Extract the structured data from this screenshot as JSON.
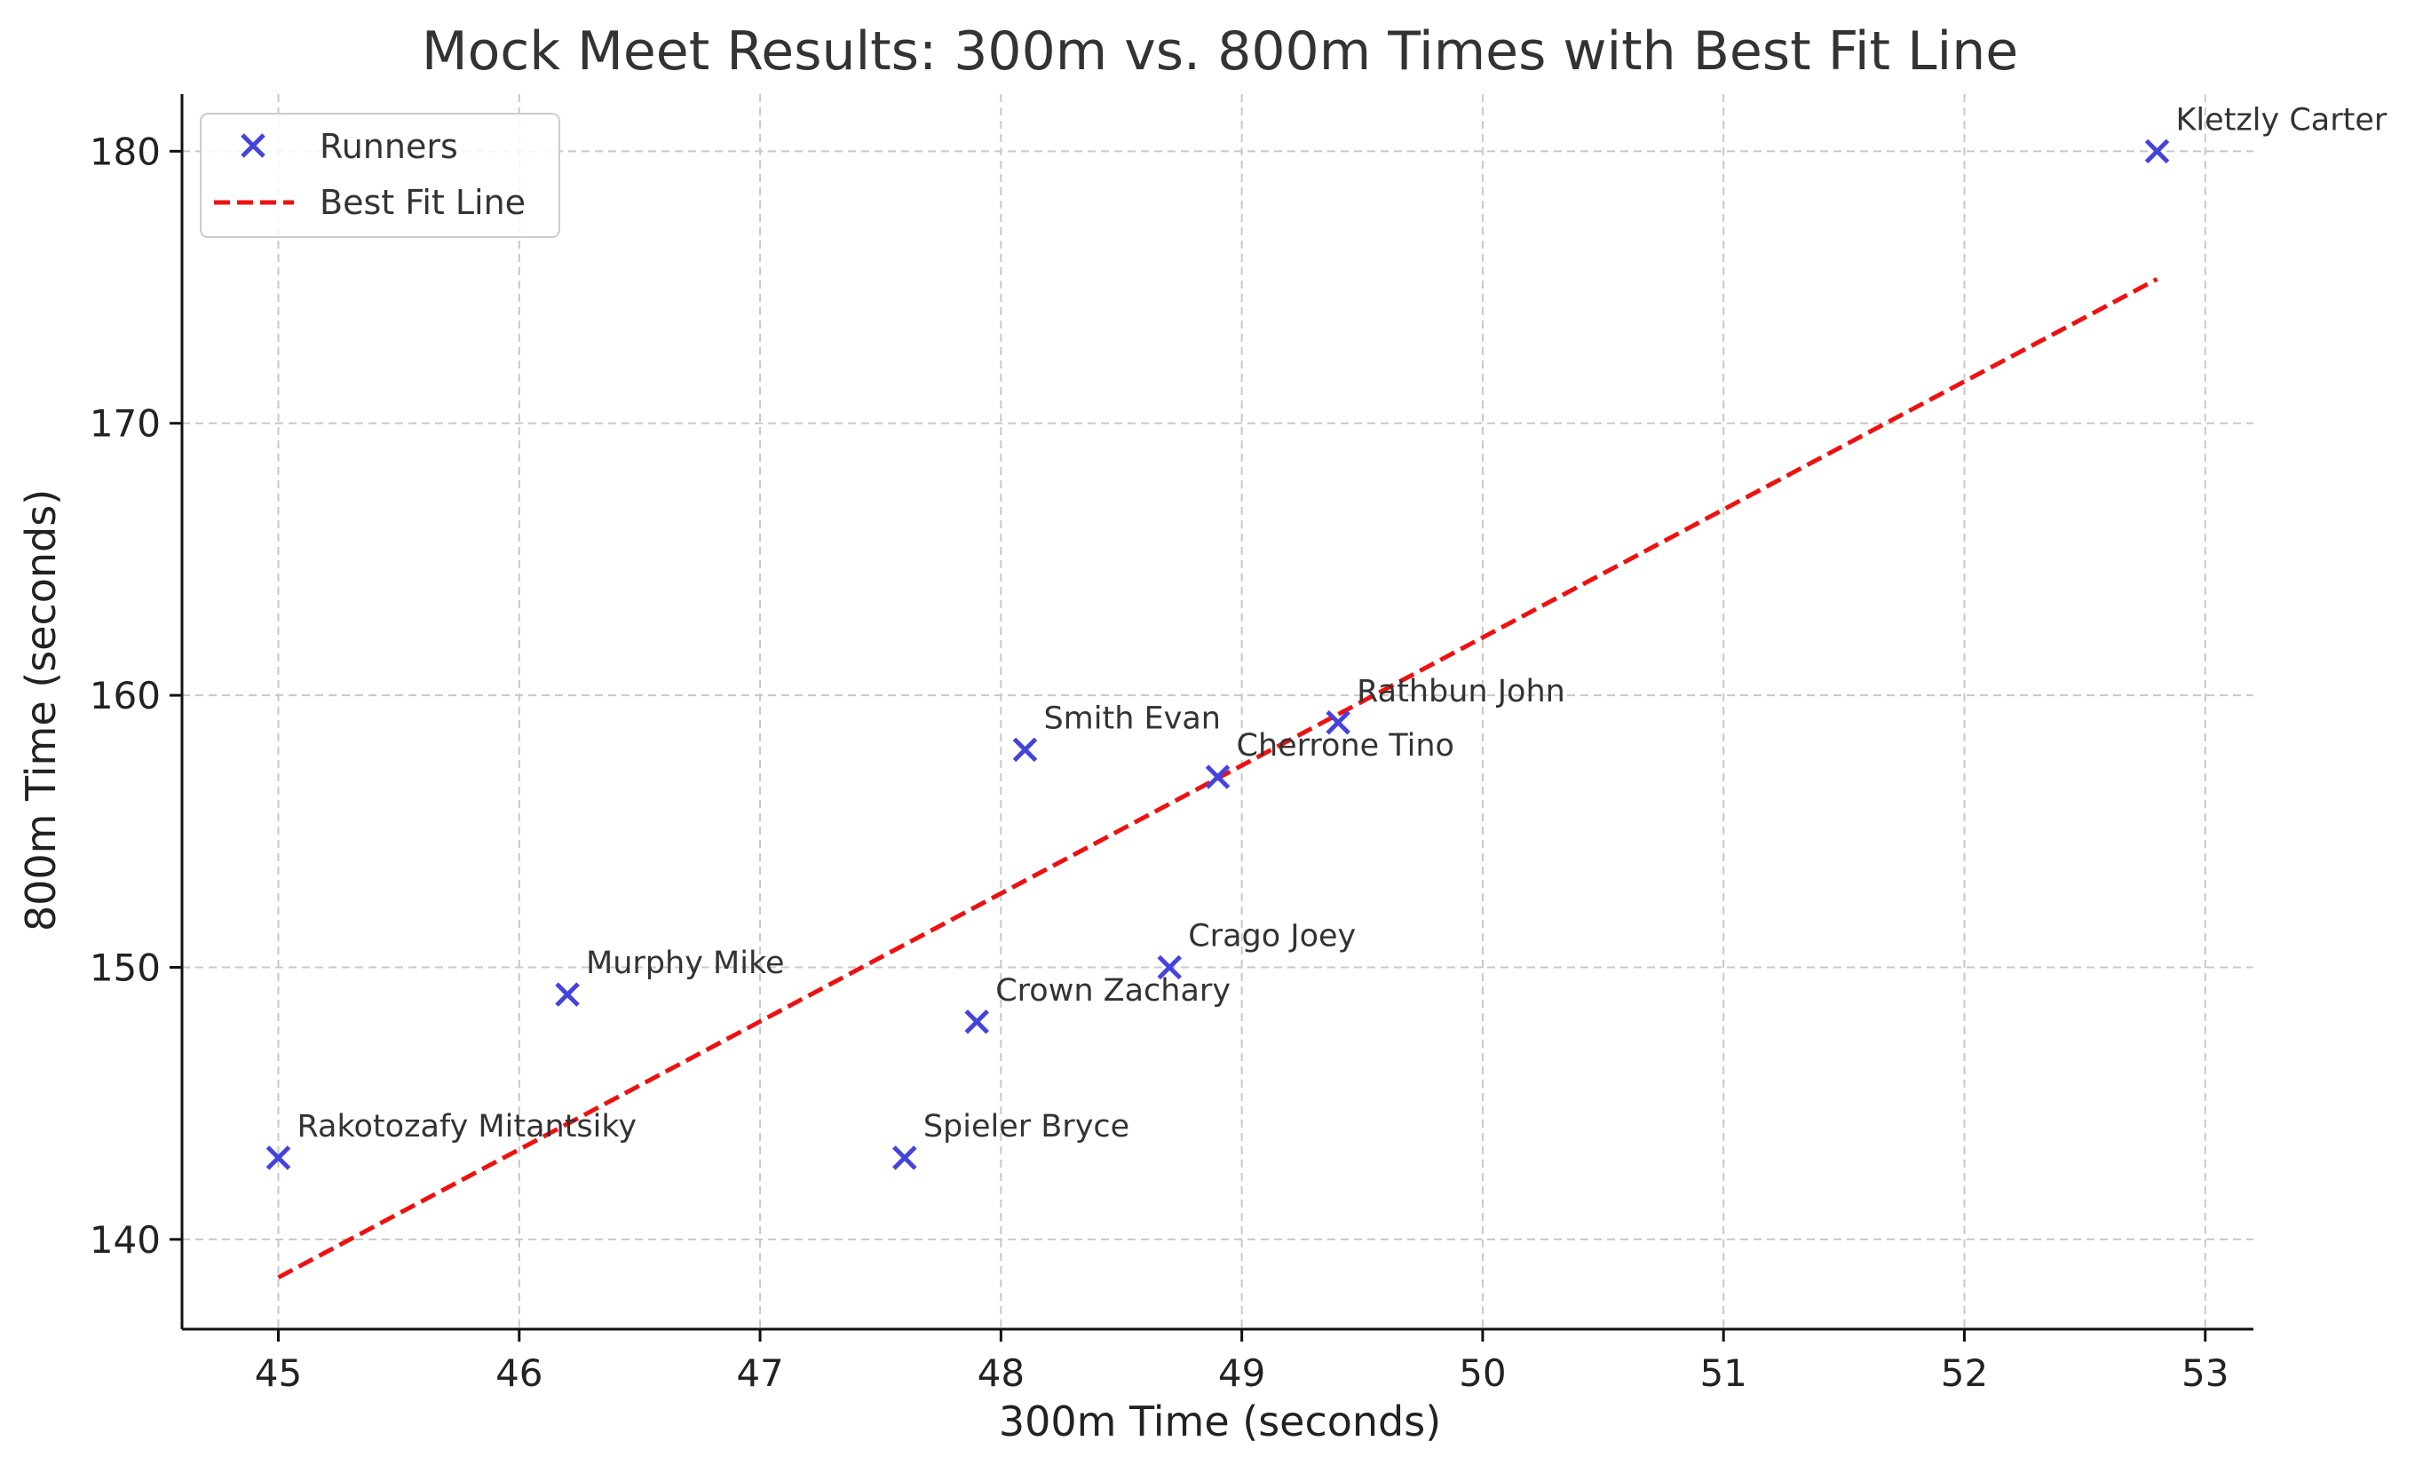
{
  "chart_data": {
    "type": "scatter",
    "title": "Mock Meet Results: 300m vs. 800m Times with Best Fit Line",
    "xlabel": "300m Time (seconds)",
    "ylabel": "800m Time (seconds)",
    "xlim": [
      44.6,
      53.2
    ],
    "ylim": [
      136.7,
      182.1
    ],
    "xticks": [
      45,
      46,
      47,
      48,
      49,
      50,
      51,
      52,
      53
    ],
    "yticks": [
      140,
      150,
      160,
      170,
      180
    ],
    "grid": true,
    "legend_position": "top-left",
    "series": [
      {
        "name": "Runners",
        "marker": "x",
        "color": "#4444dd",
        "points": [
          {
            "label": "Rakotozafy Mitantsiky",
            "x": 45.0,
            "y": 143
          },
          {
            "label": "Murphy Mike",
            "x": 46.2,
            "y": 149
          },
          {
            "label": "Spieler Bryce",
            "x": 47.6,
            "y": 143
          },
          {
            "label": "Crown Zachary",
            "x": 47.9,
            "y": 148
          },
          {
            "label": "Smith Evan",
            "x": 48.1,
            "y": 158
          },
          {
            "label": "Crago Joey",
            "x": 48.7,
            "y": 150
          },
          {
            "label": "Cherrone Tino",
            "x": 48.9,
            "y": 157
          },
          {
            "label": "Rathbun John",
            "x": 49.4,
            "y": 159
          },
          {
            "label": "Kletzly Carter",
            "x": 52.8,
            "y": 180
          }
        ]
      },
      {
        "name": "Best Fit Line",
        "style": "dashed",
        "color": "#ee1111",
        "x": [
          45.0,
          52.8
        ],
        "y": [
          138.6,
          175.3
        ]
      }
    ]
  }
}
